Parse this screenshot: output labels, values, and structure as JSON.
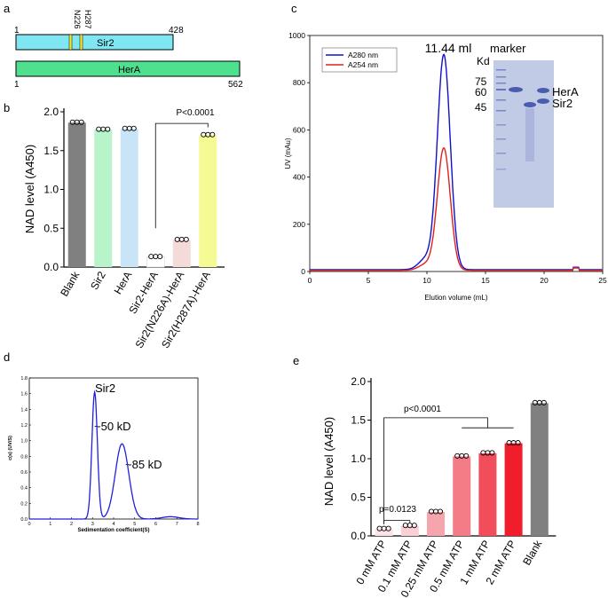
{
  "panel_labels": {
    "a": "a",
    "b": "b",
    "c": "c",
    "d": "d",
    "e": "e"
  },
  "panel_a": {
    "sir2_start": "1",
    "sir2_end": "428",
    "sir2_label": "Sir2",
    "mutation1": "N226",
    "mutation2": "H287",
    "hera_start": "1",
    "hera_end": "562",
    "hera_label": "HerA",
    "colors": {
      "sir2": "#7fe6f2",
      "hera": "#4fe08f",
      "mut": "#f2ea30"
    }
  },
  "chart_data": [
    {
      "id": "b",
      "type": "bar",
      "ylabel": "NAD  level (A450)",
      "ylim": [
        0,
        2.0
      ],
      "yticks": [
        "0.0",
        "0.5",
        "1.0",
        "1.5",
        "2.0"
      ],
      "categories": [
        "Blank",
        "Sir2",
        "HerA",
        "Sir2-HerA",
        "Sir2(N226A)-HerA",
        "Sir2(H287A)-HerA"
      ],
      "values": [
        1.86,
        1.77,
        1.78,
        0.13,
        0.35,
        1.7
      ],
      "colors": [
        "#808080",
        "#b9f3c9",
        "#c8e4f6",
        "#ffffff",
        "#f5dada",
        "#f5fa94"
      ],
      "annotation": "P<0.0001"
    },
    {
      "id": "c",
      "type": "line",
      "xlabel": "Elution volume (mL)",
      "ylabel": "UV (mAu)",
      "xlim": [
        0,
        25
      ],
      "ylim": [
        0,
        1000
      ],
      "xticks": [
        "0",
        "5",
        "10",
        "15",
        "20",
        "25"
      ],
      "yticks": [
        "0",
        "200",
        "400",
        "600",
        "800",
        "1000"
      ],
      "peak_label": "11.44 ml",
      "series": [
        {
          "name": "A280 nm",
          "color": "#1010cc",
          "peak": 910,
          "center": 11.44
        },
        {
          "name": "A254 nm",
          "color": "#e02020",
          "peak": 518,
          "center": 11.44
        }
      ],
      "gel": {
        "title": "marker",
        "unit": "Kd",
        "markers": [
          "75",
          "60",
          "45"
        ],
        "bands": [
          "HerA",
          "Sir2"
        ]
      }
    },
    {
      "id": "d",
      "type": "line",
      "title": "Sir2",
      "xlabel": "Sedimentation coefficient(S)",
      "ylabel": "c(s) (UV/S)",
      "xlim": [
        0,
        8
      ],
      "ylim": [
        0,
        1.8
      ],
      "xticks": [
        "0",
        "1",
        "2",
        "3",
        "4",
        "5",
        "6",
        "7",
        "8"
      ],
      "yticks": [
        "0.0",
        "0.2",
        "0.4",
        "0.6",
        "0.8",
        "1.0",
        "1.2",
        "1.4",
        "1.6",
        "1.8"
      ],
      "peaks": [
        {
          "s": 3.1,
          "height": 1.62,
          "label": "~50 kD"
        },
        {
          "s": 4.4,
          "height": 0.96,
          "label": "~85 kD"
        }
      ],
      "color": "#2020dd"
    },
    {
      "id": "e",
      "type": "bar",
      "ylabel": "NAD  level (A450)",
      "ylim": [
        0,
        2.0
      ],
      "yticks": [
        "0.0",
        "0.5",
        "1.0",
        "1.5",
        "2.0"
      ],
      "categories": [
        "0 mM ATP",
        "0.1 mM ATP",
        "0.25 mM ATP",
        "0.5 mM ATP",
        "1 mM ATP",
        "2 mM ATP",
        "Blank"
      ],
      "values": [
        0.09,
        0.13,
        0.31,
        1.03,
        1.07,
        1.2,
        1.72
      ],
      "colors": [
        "#fbe3e6",
        "#fbd0d4",
        "#f7a5ad",
        "#f47c87",
        "#f24d5a",
        "#f01e2c",
        "#808080"
      ],
      "annotations": [
        "p<0.0001",
        "p=0.0123"
      ]
    }
  ]
}
